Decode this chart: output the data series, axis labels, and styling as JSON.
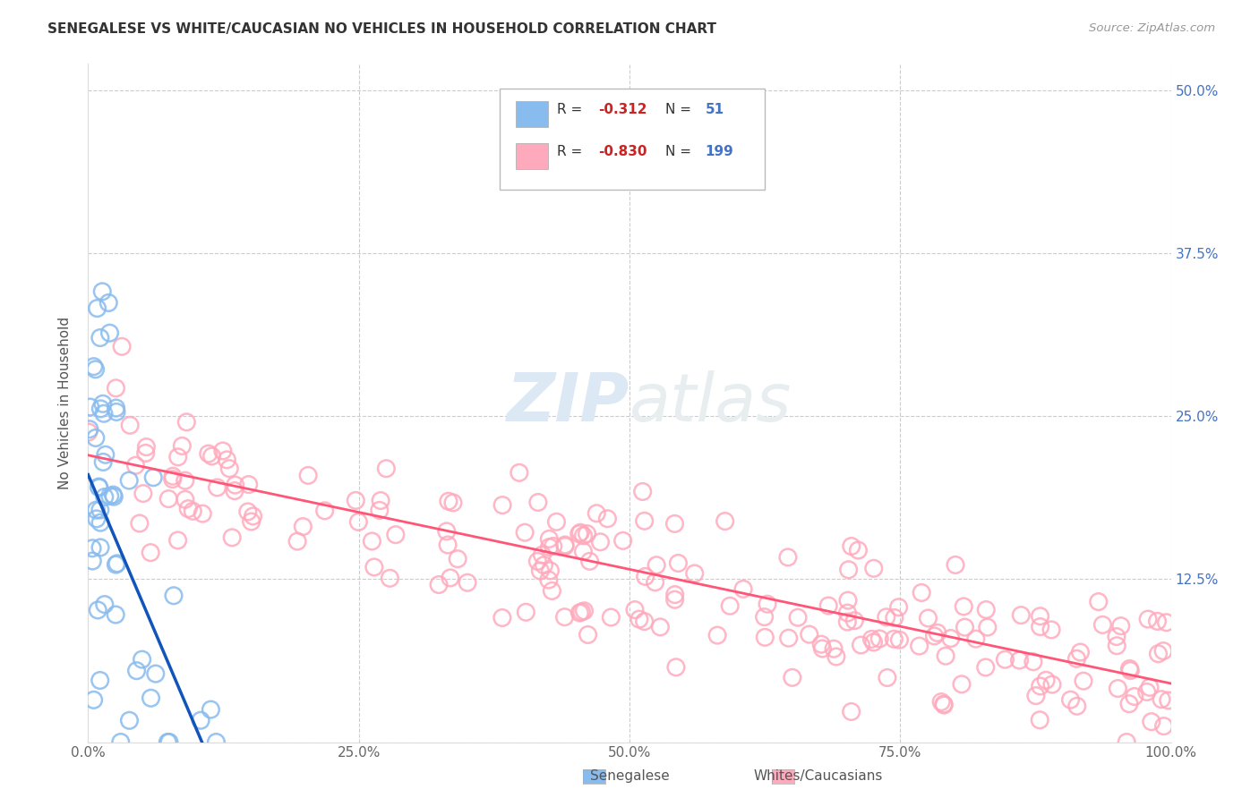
{
  "title": "SENEGALESE VS WHITE/CAUCASIAN NO VEHICLES IN HOUSEHOLD CORRELATION CHART",
  "source": "Source: ZipAtlas.com",
  "ylabel": "No Vehicles in Household",
  "xlim": [
    0,
    1.0
  ],
  "ylim": [
    0,
    0.52
  ],
  "yticks": [
    0.0,
    0.125,
    0.25,
    0.375,
    0.5
  ],
  "ytick_labels": [
    "",
    "12.5%",
    "25.0%",
    "37.5%",
    "50.0%"
  ],
  "xticks": [
    0.0,
    0.25,
    0.5,
    0.75,
    1.0
  ],
  "xtick_labels": [
    "0.0%",
    "25.0%",
    "50.0%",
    "75.0%",
    "100.0%"
  ],
  "senegalese_color": "#88BBEE",
  "caucasian_color": "#FFAABC",
  "senegalese_line_color": "#1155BB",
  "caucasian_line_color": "#FF5577",
  "watermark_zip": "ZIP",
  "watermark_atlas": "atlas",
  "background_color": "#FFFFFF",
  "grid_color": "#CCCCCC",
  "legend_label_1": "Senegalese",
  "legend_label_2": "Whites/Caucasians",
  "senegalese_N": 51,
  "caucasian_N": 199,
  "sen_intercept": 0.205,
  "sen_slope": -1.95,
  "cau_intercept": 0.22,
  "cau_slope": -0.175,
  "title_fontsize": 11,
  "tick_color": "#4472C4",
  "axis_text_color": "#666666"
}
